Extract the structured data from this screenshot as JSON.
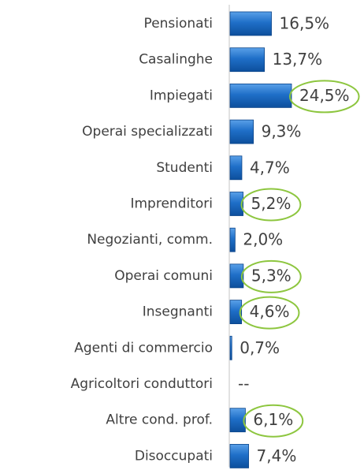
{
  "chart_data": {
    "type": "bar",
    "orientation": "horizontal",
    "categories": [
      "Pensionati",
      "Casalinghe",
      "Impiegati",
      "Operai specializzati",
      "Studenti",
      "Imprenditori",
      "Negozianti, comm.",
      "Operai comuni",
      "Insegnanti",
      "Agenti di commercio",
      "Agricoltori conduttori",
      "Altre cond. prof.",
      "Disoccupati"
    ],
    "values": [
      16.5,
      13.7,
      24.5,
      9.3,
      4.7,
      5.2,
      2.0,
      5.3,
      4.6,
      0.7,
      null,
      6.1,
      7.4
    ],
    "value_labels": [
      "16,5%",
      "13,7%",
      "24,5%",
      "9,3%",
      "4,7%",
      "5,2%",
      "2,0%",
      "5,3%",
      "4,6%",
      "0,7%",
      "--",
      "6,1%",
      "7,4%"
    ],
    "color": "#1f6fc8",
    "highlight": [
      2,
      5,
      7,
      8,
      11
    ],
    "highlight_color": "#8dc63f"
  }
}
